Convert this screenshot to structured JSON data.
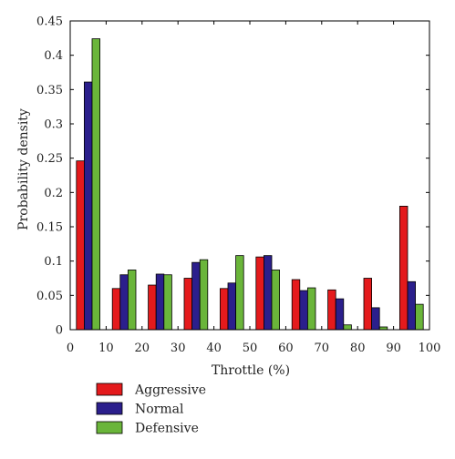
{
  "chart_data": {
    "type": "bar",
    "xlabel": "Throttle (%)",
    "ylabel": "Probability density",
    "xlim": [
      0,
      100
    ],
    "ylim": [
      0,
      0.45
    ],
    "x_ticks": [
      "0",
      "10",
      "20",
      "30",
      "40",
      "50",
      "60",
      "70",
      "80",
      "90",
      "100"
    ],
    "y_ticks": [
      "0",
      "0.05",
      "0.1",
      "0.15",
      "0.2",
      "0.25",
      "0.3",
      "0.35",
      "0.4",
      "0.45"
    ],
    "bin_centers": [
      5,
      15,
      25,
      35,
      45,
      55,
      65,
      75,
      85,
      95
    ],
    "grid": false,
    "legend_position": "below-left",
    "series": [
      {
        "name": "Aggressive",
        "color": "#e41a1c",
        "values": [
          0.246,
          0.06,
          0.065,
          0.075,
          0.06,
          0.106,
          0.073,
          0.058,
          0.075,
          0.18
        ]
      },
      {
        "name": "Normal",
        "color": "#2b1f8c",
        "values": [
          0.361,
          0.08,
          0.081,
          0.098,
          0.068,
          0.108,
          0.057,
          0.045,
          0.032,
          0.07
        ]
      },
      {
        "name": "Defensive",
        "color": "#6ab53a",
        "values": [
          0.424,
          0.087,
          0.08,
          0.102,
          0.108,
          0.087,
          0.061,
          0.007,
          0.004,
          0.037
        ]
      }
    ]
  }
}
